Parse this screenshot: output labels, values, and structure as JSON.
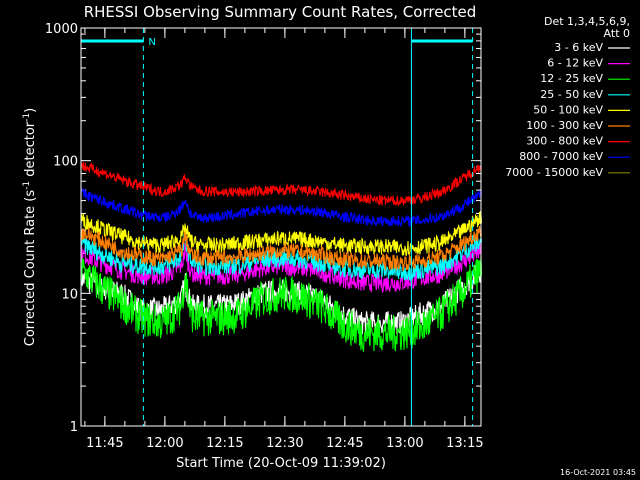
{
  "chart_data": {
    "type": "line",
    "title": "RHESSI Observing Summary Count Rates, Corrected",
    "xlabel": "Start Time (20-Oct-09 11:39:02)",
    "ylabel_parts": {
      "main": "Corrected Count Rate (s",
      "sup1": "-1",
      "mid": " detector",
      "sup2": "-1",
      "end": ")"
    },
    "y_scale": "log",
    "ylim": [
      1,
      1000
    ],
    "y_ticks": [
      {
        "value": 1,
        "label": "1"
      },
      {
        "value": 10,
        "label": "10"
      },
      {
        "value": 100,
        "label": "100"
      },
      {
        "value": 1000,
        "label": "1000"
      }
    ],
    "xlim_minutes": [
      0,
      100
    ],
    "x_ticks": [
      {
        "minute": 5.97,
        "label": "11:45"
      },
      {
        "minute": 20.97,
        "label": "12:00"
      },
      {
        "minute": 35.97,
        "label": "12:15"
      },
      {
        "minute": 50.97,
        "label": "12:30"
      },
      {
        "minute": 65.97,
        "label": "12:45"
      },
      {
        "minute": 80.97,
        "label": "13:00"
      },
      {
        "minute": 95.97,
        "label": "13:15"
      }
    ],
    "legend_header": [
      "Det 1,3,4,5,6,9,",
      "Att 0"
    ],
    "legend_placement": "right",
    "series": [
      {
        "name": "3 - 6 keV",
        "color": "#ffffff",
        "x": [
          0,
          5,
          10,
          15,
          20,
          22,
          25,
          26,
          27,
          28,
          30,
          35,
          40,
          45,
          50,
          55,
          60,
          65,
          70,
          75,
          80,
          85,
          90,
          95,
          100
        ],
        "y": [
          13,
          11,
          10,
          7.5,
          7.5,
          8,
          9,
          12,
          9,
          8,
          8,
          8,
          8.5,
          10,
          10.5,
          10,
          9,
          7,
          6,
          6,
          6,
          7,
          8,
          11,
          15
        ]
      },
      {
        "name": "6 - 12 keV",
        "color": "#ff00ff",
        "x": [
          0,
          5,
          10,
          15,
          20,
          22,
          25,
          26,
          27,
          28,
          30,
          35,
          40,
          45,
          50,
          55,
          60,
          65,
          70,
          75,
          80,
          85,
          90,
          95,
          100
        ],
        "y": [
          20,
          17,
          15,
          13.5,
          13.5,
          14,
          16,
          21,
          16,
          14,
          13.5,
          13.5,
          14,
          15.5,
          16,
          15.5,
          14.5,
          13,
          12,
          12,
          12,
          13,
          14,
          17,
          21
        ]
      },
      {
        "name": "12 - 25 keV",
        "color": "#00ff00",
        "x": [
          0,
          5,
          10,
          15,
          20,
          22,
          25,
          26,
          27,
          28,
          30,
          35,
          40,
          45,
          50,
          55,
          60,
          65,
          70,
          75,
          80,
          85,
          90,
          95,
          100
        ],
        "y": [
          15,
          11,
          8.5,
          6.5,
          6,
          6.5,
          8,
          14,
          8,
          6.5,
          6.5,
          6.5,
          7,
          9,
          10,
          9.5,
          8,
          6,
          5,
          5,
          5,
          5.5,
          7,
          10,
          15
        ]
      },
      {
        "name": "25 - 50 keV",
        "color": "#00ffff",
        "x": [
          0,
          5,
          10,
          15,
          20,
          22,
          25,
          26,
          27,
          28,
          30,
          35,
          40,
          45,
          50,
          55,
          60,
          65,
          70,
          75,
          80,
          85,
          90,
          95,
          100
        ],
        "y": [
          24,
          20,
          17,
          16,
          16,
          16.5,
          19,
          26,
          19,
          17,
          16,
          16,
          16.5,
          18,
          18.5,
          18,
          17,
          15.5,
          15,
          15,
          14.5,
          15,
          16,
          20,
          25
        ]
      },
      {
        "name": "50 - 100 keV",
        "color": "#ffff00",
        "x": [
          0,
          5,
          10,
          15,
          20,
          22,
          25,
          26,
          27,
          28,
          30,
          35,
          40,
          45,
          50,
          55,
          60,
          65,
          70,
          75,
          80,
          85,
          90,
          95,
          100
        ],
        "y": [
          36,
          31,
          27,
          24,
          23,
          24,
          26,
          31,
          26,
          24,
          23,
          23,
          24,
          25,
          26,
          25.5,
          24.5,
          23,
          22.5,
          22.5,
          22,
          22.5,
          24,
          29,
          38
        ]
      },
      {
        "name": "100 - 300 keV",
        "color": "#ff7f00",
        "x": [
          0,
          5,
          10,
          15,
          20,
          22,
          25,
          26,
          27,
          28,
          30,
          35,
          40,
          45,
          50,
          55,
          60,
          65,
          70,
          75,
          80,
          85,
          90,
          95,
          100
        ],
        "y": [
          29,
          25,
          21,
          19,
          18,
          19,
          21,
          27,
          21,
          19,
          18.5,
          18.5,
          19,
          20,
          21,
          20.5,
          19.5,
          18,
          17.5,
          17.5,
          17,
          17.5,
          19,
          23,
          30
        ]
      },
      {
        "name": "300 - 800 keV",
        "color": "#ff0000",
        "x": [
          0,
          5,
          10,
          15,
          20,
          22,
          25,
          26,
          27,
          28,
          30,
          35,
          40,
          45,
          50,
          55,
          60,
          65,
          70,
          75,
          80,
          85,
          90,
          95,
          100
        ],
        "y": [
          92,
          82,
          72,
          64,
          58,
          60,
          66,
          76,
          66,
          62,
          59,
          58,
          58,
          59,
          60,
          60,
          58,
          55,
          52,
          50,
          50,
          52,
          58,
          72,
          92
        ]
      },
      {
        "name": "800 - 7000 keV",
        "color": "#0000ff",
        "x": [
          0,
          5,
          10,
          15,
          20,
          22,
          25,
          26,
          27,
          28,
          30,
          35,
          40,
          45,
          50,
          55,
          60,
          65,
          70,
          75,
          80,
          85,
          90,
          95,
          100
        ],
        "y": [
          57,
          50,
          44,
          39,
          37,
          38,
          44,
          51,
          41,
          38,
          37,
          38,
          40,
          42,
          43,
          42.5,
          41,
          38,
          36,
          35,
          35,
          35.5,
          38,
          45,
          56
        ]
      },
      {
        "name": "7000 - 15000 keV",
        "color": "#808000",
        "x": [],
        "y": []
      }
    ],
    "annotations": {
      "saa_bar_label": "N",
      "night_intervals_minutes": [
        [
          0,
          15.6
        ],
        [
          82.6,
          97.9
        ]
      ]
    },
    "timestamp": "16-Oct-2021 03:45"
  }
}
